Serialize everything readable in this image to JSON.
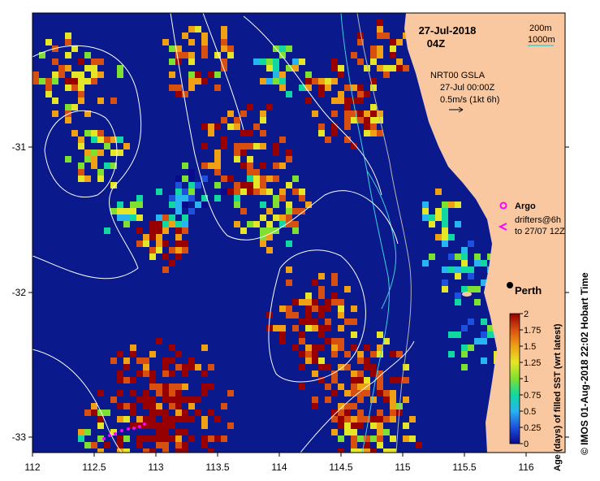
{
  "map": {
    "date_title": "27-Jul-2018",
    "time_title": "04Z",
    "contour_legend": [
      "200m",
      "1000m"
    ],
    "gsla_title": "NRT00 GSLA",
    "gsla_time": "27-Jul 00:00Z",
    "vector_scale": "0.5m/s (1kt 6h)",
    "argo_label": "Argo",
    "drifters_label_1": "drifters@6h",
    "drifters_label_2": "to 27/07 12Z",
    "city_label": "Perth",
    "colorbar_label": "Age (days) of filled SST (wrt latest)",
    "colorbar_ticks": [
      "0",
      "0.25",
      "0.5",
      "0.75",
      "1",
      "1.25",
      "1.5",
      "1.75",
      "2"
    ],
    "side_credit": "© IMOS 01-Aug-2018 22:02 Hobart Time",
    "x_ticks": [
      "112",
      "112.5",
      "113",
      "113.5",
      "114",
      "114.5",
      "115",
      "115.5",
      "116"
    ],
    "y_ticks": [
      "-31",
      "-32",
      "-33"
    ],
    "colors": {
      "land": "#fac8a0",
      "ocean_deep": "#0a1a8c",
      "contour_200m": "#b4b4b4",
      "contour_1000m": "#40d0d8",
      "argo": "#ff00ff",
      "ssh_contour": "#ffffff"
    },
    "colorbar_stops": [
      "#0a0a8c",
      "#1e50dc",
      "#28b4f0",
      "#10d8a0",
      "#7ee030",
      "#e6e628",
      "#f0a014",
      "#d85010",
      "#960000"
    ]
  }
}
